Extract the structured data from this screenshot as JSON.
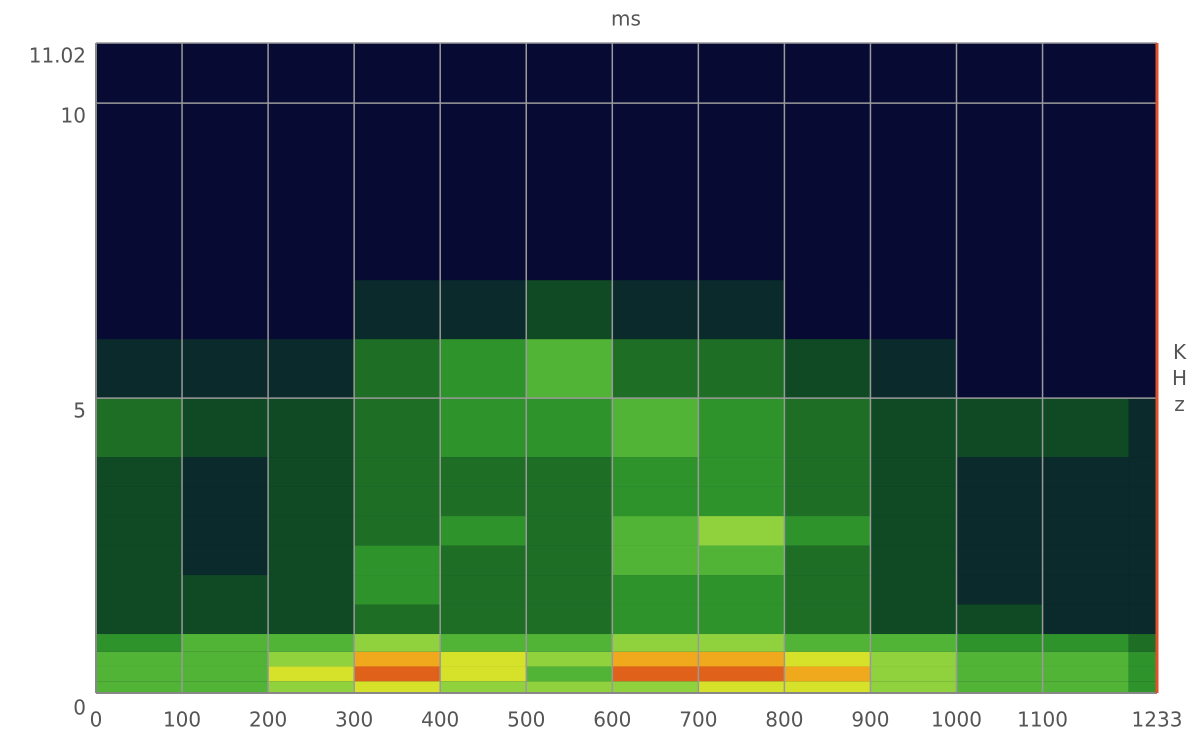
{
  "chart_data": {
    "type": "heatmap",
    "title": "ms",
    "y_label": "KHz",
    "xbins": [
      0,
      100,
      200,
      300,
      400,
      500,
      600,
      700,
      800,
      900,
      1000,
      1100,
      1200,
      1233
    ],
    "ybins": [
      0,
      0.2,
      0.45,
      0.7,
      1,
      1.5,
      2,
      2.5,
      3,
      3.5,
      4,
      5,
      6,
      7,
      11.02
    ],
    "z": [
      [
        5,
        5,
        6,
        7,
        6,
        6,
        6,
        7,
        7,
        6,
        5,
        5,
        4
      ],
      [
        5,
        5,
        7,
        9,
        7,
        5,
        9,
        9,
        8,
        6,
        5,
        5,
        4
      ],
      [
        5,
        5,
        6,
        8,
        7,
        6,
        8,
        8,
        7,
        6,
        5,
        5,
        4
      ],
      [
        4,
        5,
        5,
        6,
        5,
        5,
        6,
        6,
        5,
        5,
        4,
        4,
        3
      ],
      [
        2,
        2,
        2,
        3,
        3,
        3,
        4,
        4,
        3,
        2,
        2,
        1,
        1
      ],
      [
        2,
        2,
        2,
        4,
        3,
        3,
        4,
        4,
        3,
        2,
        1,
        1,
        1
      ],
      [
        2,
        1,
        2,
        4,
        3,
        3,
        5,
        5,
        3,
        2,
        1,
        1,
        1
      ],
      [
        2,
        1,
        2,
        3,
        4,
        3,
        5,
        6,
        4,
        2,
        1,
        1,
        1
      ],
      [
        2,
        1,
        2,
        3,
        3,
        3,
        4,
        4,
        3,
        2,
        1,
        1,
        1
      ],
      [
        2,
        1,
        2,
        3,
        3,
        3,
        4,
        4,
        3,
        2,
        1,
        1,
        1
      ],
      [
        3,
        2,
        2,
        3,
        4,
        4,
        5,
        4,
        3,
        2,
        2,
        2,
        1
      ],
      [
        1,
        1,
        1,
        3,
        4,
        5,
        3,
        3,
        2,
        1,
        0,
        0,
        0
      ],
      [
        0,
        0,
        0,
        1,
        1,
        2,
        1,
        1,
        0,
        0,
        0,
        0,
        0
      ],
      [
        0,
        0,
        0,
        0,
        0,
        0,
        0,
        0,
        0,
        0,
        0,
        0,
        0
      ]
    ],
    "colors": [
      "#070b33",
      "#0b2a2c",
      "#0f4a24",
      "#1e6e26",
      "#2f932c",
      "#52b436",
      "#8fd23e",
      "#d6e22a",
      "#f0a81c",
      "#e0621a",
      "#c83a12"
    ],
    "xlim": [
      0,
      1233
    ],
    "xticks": [
      0,
      100,
      200,
      300,
      400,
      500,
      600,
      700,
      800,
      900,
      1000,
      1100,
      1233
    ],
    "ylim": [
      0,
      11.02
    ],
    "yticks": [
      0,
      5,
      10,
      11.02
    ],
    "grid": true,
    "grid_color": "#9a9a9a",
    "edge_color": "#e0502a"
  }
}
